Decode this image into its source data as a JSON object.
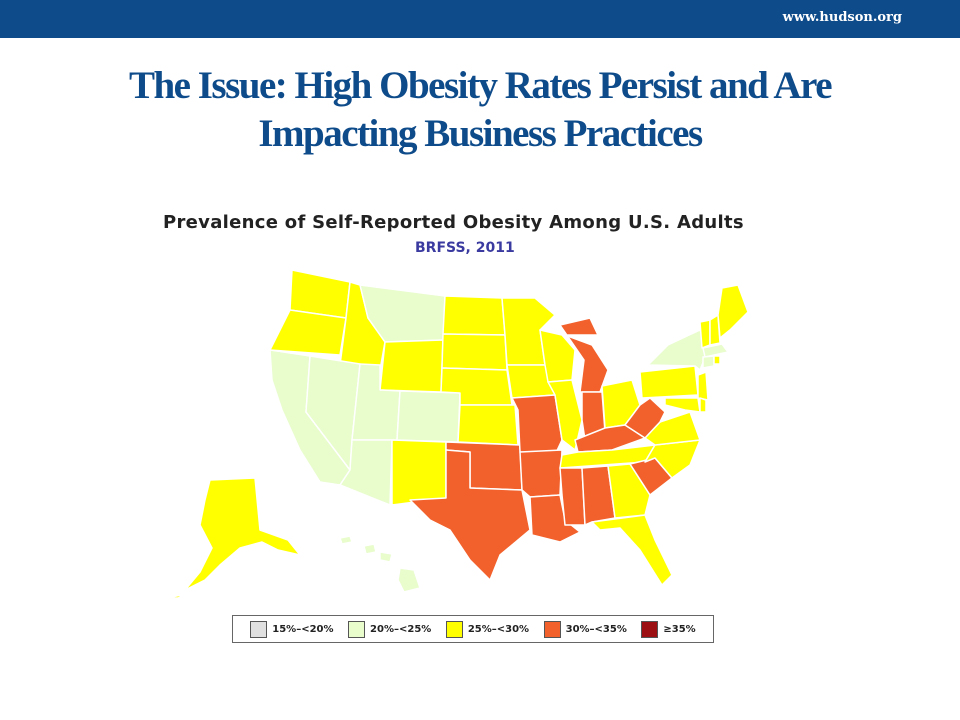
{
  "header": {
    "url": "www.hudson.org",
    "title_line1": "The Issue: High Obesity Rates Persist and Are",
    "title_line2": "Impacting Business Practices"
  },
  "map": {
    "title": "Prevalence of Self-Reported Obesity Among U.S. Adults",
    "subtitle": "BRFSS, 2011",
    "colors": {
      "15-20": "#e0e0e0",
      "20-25": "#e8fccc",
      "25-30": "#ffff00",
      "30-35": "#f2602b",
      "35plus": "#9c0f13"
    },
    "legend": [
      {
        "label": "15%–<20%",
        "color": "#e0e0e0"
      },
      {
        "label": "20%–<25%",
        "color": "#e8fccc"
      },
      {
        "label": "25%–<30%",
        "color": "#ffff00"
      },
      {
        "label": "30%–<35%",
        "color": "#f2602b"
      },
      {
        "label": "≥35%",
        "color": "#9c0f13"
      }
    ]
  }
}
